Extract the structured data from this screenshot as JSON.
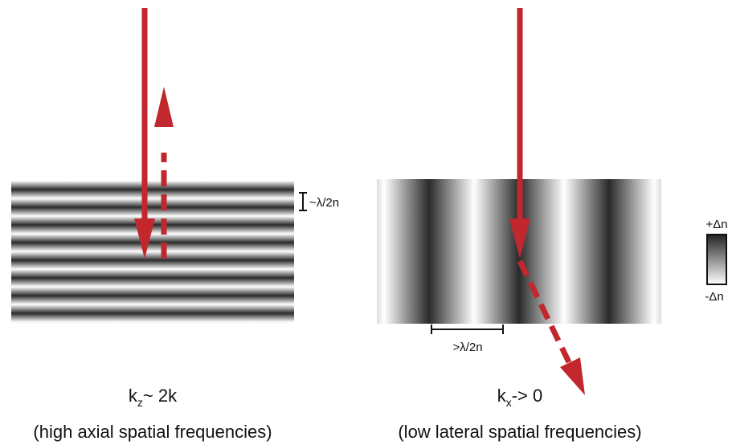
{
  "left": {
    "scale_label": "~λ/2n",
    "wavevector": {
      "base": "k",
      "sub": "z",
      "rest": "~ 2k"
    },
    "caption": "(high axial spatial frequencies)"
  },
  "right": {
    "scale_label": ">λ/2n",
    "wavevector": {
      "base": "k",
      "sub": "x",
      "rest": "-> 0"
    },
    "caption": "(low lateral spatial frequencies)"
  },
  "colorbar": {
    "top": "+Δn",
    "bottom": "-Δn"
  }
}
